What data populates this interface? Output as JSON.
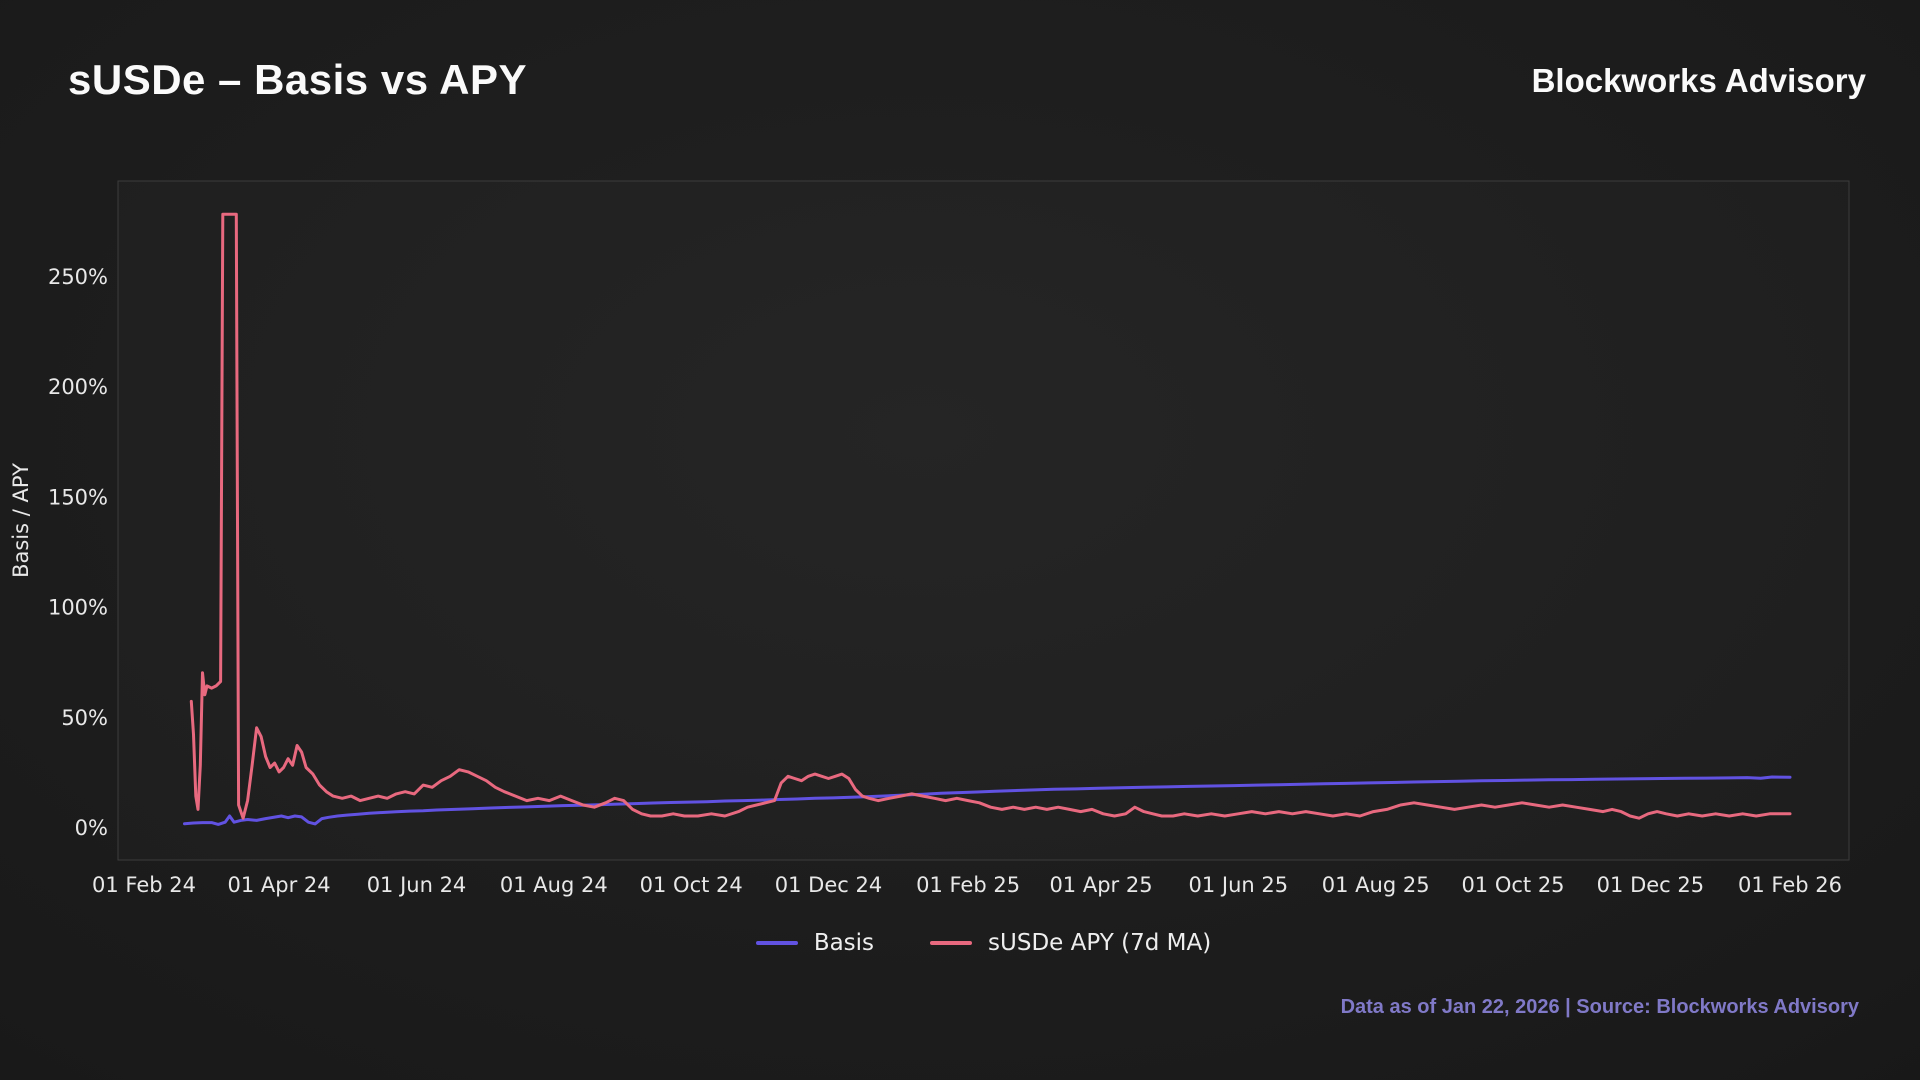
{
  "header": {
    "title": "sUSDe – Basis vs APY",
    "brand": "Blockworks Advisory"
  },
  "footer": {
    "text": "Data as of Jan 22, 2026 | Source: Blockworks Advisory",
    "color": "#8079c7"
  },
  "chart_data": {
    "type": "line",
    "title": "sUSDe – Basis vs APY",
    "xlabel": "",
    "ylabel": "Basis / APY",
    "grid": false,
    "legend_position": "bottom",
    "ylim": [
      -12,
      292
    ],
    "y_ticks": [
      0,
      50,
      100,
      150,
      200,
      250
    ],
    "y_tick_suffix": "%",
    "x_domain_days": 731,
    "x_start": "01 Feb 24",
    "x_end": "01 Feb 26",
    "x_ticks": [
      {
        "day": 0,
        "label": "01 Feb 24"
      },
      {
        "day": 60,
        "label": "01 Apr 24"
      },
      {
        "day": 121,
        "label": "01 Jun 24"
      },
      {
        "day": 182,
        "label": "01 Aug 24"
      },
      {
        "day": 243,
        "label": "01 Oct 24"
      },
      {
        "day": 304,
        "label": "01 Dec 24"
      },
      {
        "day": 366,
        "label": "01 Feb 25"
      },
      {
        "day": 425,
        "label": "01 Apr 25"
      },
      {
        "day": 486,
        "label": "01 Jun 25"
      },
      {
        "day": 547,
        "label": "01 Aug 25"
      },
      {
        "day": 608,
        "label": "01 Oct 25"
      },
      {
        "day": 669,
        "label": "01 Dec 25"
      },
      {
        "day": 731,
        "label": "01 Feb 26"
      }
    ],
    "series": [
      {
        "name": "Basis",
        "color": "#6152e2",
        "unit": "%",
        "points": [
          [
            18,
            1.5
          ],
          [
            22,
            1.8
          ],
          [
            26,
            2
          ],
          [
            30,
            2
          ],
          [
            33,
            1.2
          ],
          [
            36,
            2.2
          ],
          [
            38,
            5
          ],
          [
            40,
            2.2
          ],
          [
            43,
            3
          ],
          [
            46,
            3.4
          ],
          [
            50,
            3
          ],
          [
            54,
            3.8
          ],
          [
            58,
            4.5
          ],
          [
            61,
            5
          ],
          [
            64,
            4.2
          ],
          [
            67,
            5
          ],
          [
            70,
            4.6
          ],
          [
            73,
            2.2
          ],
          [
            76,
            1.4
          ],
          [
            79,
            3.8
          ],
          [
            82,
            4.4
          ],
          [
            86,
            5
          ],
          [
            90,
            5.4
          ],
          [
            95,
            5.8
          ],
          [
            100,
            6.2
          ],
          [
            106,
            6.6
          ],
          [
            112,
            6.9
          ],
          [
            118,
            7.2
          ],
          [
            124,
            7.4
          ],
          [
            130,
            7.7
          ],
          [
            138,
            8
          ],
          [
            146,
            8.3
          ],
          [
            154,
            8.6
          ],
          [
            162,
            8.9
          ],
          [
            170,
            9.1
          ],
          [
            178,
            9.4
          ],
          [
            186,
            9.7
          ],
          [
            194,
            9.9
          ],
          [
            202,
            10.1
          ],
          [
            210,
            10.4
          ],
          [
            218,
            10.6
          ],
          [
            226,
            10.9
          ],
          [
            234,
            11.1
          ],
          [
            242,
            11.3
          ],
          [
            250,
            11.5
          ],
          [
            258,
            11.8
          ],
          [
            266,
            12
          ],
          [
            274,
            12.2
          ],
          [
            282,
            12.5
          ],
          [
            290,
            12.7
          ],
          [
            298,
            13
          ],
          [
            306,
            13.2
          ],
          [
            314,
            13.5
          ],
          [
            322,
            13.8
          ],
          [
            330,
            14.1
          ],
          [
            338,
            14.5
          ],
          [
            346,
            14.9
          ],
          [
            354,
            15.3
          ],
          [
            362,
            15.6
          ],
          [
            370,
            15.9
          ],
          [
            378,
            16.2
          ],
          [
            386,
            16.5
          ],
          [
            394,
            16.8
          ],
          [
            404,
            17.1
          ],
          [
            414,
            17.3
          ],
          [
            424,
            17.6
          ],
          [
            434,
            17.8
          ],
          [
            444,
            18
          ],
          [
            454,
            18.2
          ],
          [
            464,
            18.4
          ],
          [
            474,
            18.6
          ],
          [
            484,
            18.8
          ],
          [
            494,
            19
          ],
          [
            504,
            19.2
          ],
          [
            514,
            19.4
          ],
          [
            524,
            19.6
          ],
          [
            534,
            19.8
          ],
          [
            544,
            20
          ],
          [
            554,
            20.2
          ],
          [
            564,
            20.4
          ],
          [
            574,
            20.6
          ],
          [
            584,
            20.8
          ],
          [
            594,
            21
          ],
          [
            604,
            21.1
          ],
          [
            614,
            21.3
          ],
          [
            624,
            21.4
          ],
          [
            634,
            21.5
          ],
          [
            644,
            21.7
          ],
          [
            654,
            21.8
          ],
          [
            664,
            21.9
          ],
          [
            674,
            22
          ],
          [
            684,
            22.1
          ],
          [
            694,
            22.2
          ],
          [
            704,
            22.3
          ],
          [
            712,
            22.4
          ],
          [
            718,
            22.1
          ],
          [
            723,
            22.7
          ],
          [
            731,
            22.6
          ]
        ]
      },
      {
        "name": "sUSDe APY (7d MA)",
        "color": "#e8697f",
        "unit": "%",
        "points": [
          [
            21,
            57
          ],
          [
            22,
            42
          ],
          [
            23,
            14
          ],
          [
            24,
            8
          ],
          [
            25,
            28
          ],
          [
            26,
            70
          ],
          [
            27,
            60
          ],
          [
            28,
            64
          ],
          [
            30,
            63
          ],
          [
            32,
            64
          ],
          [
            34,
            66
          ],
          [
            35,
            278
          ],
          [
            41,
            278
          ],
          [
            42,
            10
          ],
          [
            44,
            4
          ],
          [
            46,
            12
          ],
          [
            48,
            28
          ],
          [
            50,
            45
          ],
          [
            52,
            41
          ],
          [
            54,
            32
          ],
          [
            56,
            27
          ],
          [
            58,
            29
          ],
          [
            60,
            25
          ],
          [
            62,
            27
          ],
          [
            64,
            31
          ],
          [
            66,
            28
          ],
          [
            68,
            37
          ],
          [
            70,
            34
          ],
          [
            72,
            27
          ],
          [
            75,
            24
          ],
          [
            78,
            19
          ],
          [
            81,
            16
          ],
          [
            84,
            14
          ],
          [
            88,
            13
          ],
          [
            92,
            14
          ],
          [
            96,
            12
          ],
          [
            100,
            13
          ],
          [
            104,
            14
          ],
          [
            108,
            13
          ],
          [
            112,
            15
          ],
          [
            116,
            16
          ],
          [
            120,
            15
          ],
          [
            124,
            19
          ],
          [
            128,
            18
          ],
          [
            132,
            21
          ],
          [
            136,
            23
          ],
          [
            140,
            26
          ],
          [
            144,
            25
          ],
          [
            148,
            23
          ],
          [
            152,
            21
          ],
          [
            156,
            18
          ],
          [
            160,
            16
          ],
          [
            165,
            14
          ],
          [
            170,
            12
          ],
          [
            175,
            13
          ],
          [
            180,
            12
          ],
          [
            185,
            14
          ],
          [
            190,
            12
          ],
          [
            195,
            10
          ],
          [
            200,
            9
          ],
          [
            205,
            11
          ],
          [
            209,
            13
          ],
          [
            213,
            12
          ],
          [
            217,
            8
          ],
          [
            221,
            6
          ],
          [
            225,
            5
          ],
          [
            230,
            5
          ],
          [
            235,
            6
          ],
          [
            240,
            5
          ],
          [
            246,
            5
          ],
          [
            252,
            6
          ],
          [
            258,
            5
          ],
          [
            264,
            7
          ],
          [
            268,
            9
          ],
          [
            272,
            10
          ],
          [
            276,
            11
          ],
          [
            280,
            12
          ],
          [
            283,
            20
          ],
          [
            286,
            23
          ],
          [
            289,
            22
          ],
          [
            292,
            21
          ],
          [
            295,
            23
          ],
          [
            298,
            24
          ],
          [
            301,
            23
          ],
          [
            304,
            22
          ],
          [
            307,
            23
          ],
          [
            310,
            24
          ],
          [
            313,
            22
          ],
          [
            316,
            17
          ],
          [
            319,
            14
          ],
          [
            322,
            13
          ],
          [
            326,
            12
          ],
          [
            331,
            13
          ],
          [
            336,
            14
          ],
          [
            341,
            15
          ],
          [
            346,
            14
          ],
          [
            351,
            13
          ],
          [
            356,
            12
          ],
          [
            361,
            13
          ],
          [
            366,
            12
          ],
          [
            371,
            11
          ],
          [
            376,
            9
          ],
          [
            381,
            8
          ],
          [
            386,
            9
          ],
          [
            391,
            8
          ],
          [
            396,
            9
          ],
          [
            401,
            8
          ],
          [
            406,
            9
          ],
          [
            411,
            8
          ],
          [
            416,
            7
          ],
          [
            421,
            8
          ],
          [
            426,
            6
          ],
          [
            431,
            5
          ],
          [
            436,
            6
          ],
          [
            440,
            9
          ],
          [
            444,
            7
          ],
          [
            448,
            6
          ],
          [
            452,
            5
          ],
          [
            457,
            5
          ],
          [
            462,
            6
          ],
          [
            468,
            5
          ],
          [
            474,
            6
          ],
          [
            480,
            5
          ],
          [
            486,
            6
          ],
          [
            492,
            7
          ],
          [
            498,
            6
          ],
          [
            504,
            7
          ],
          [
            510,
            6
          ],
          [
            516,
            7
          ],
          [
            522,
            6
          ],
          [
            528,
            5
          ],
          [
            534,
            6
          ],
          [
            540,
            5
          ],
          [
            546,
            7
          ],
          [
            552,
            8
          ],
          [
            558,
            10
          ],
          [
            564,
            11
          ],
          [
            570,
            10
          ],
          [
            576,
            9
          ],
          [
            582,
            8
          ],
          [
            588,
            9
          ],
          [
            594,
            10
          ],
          [
            600,
            9
          ],
          [
            606,
            10
          ],
          [
            612,
            11
          ],
          [
            618,
            10
          ],
          [
            624,
            9
          ],
          [
            630,
            10
          ],
          [
            636,
            9
          ],
          [
            642,
            8
          ],
          [
            648,
            7
          ],
          [
            652,
            8
          ],
          [
            656,
            7
          ],
          [
            660,
            5
          ],
          [
            664,
            4
          ],
          [
            668,
            6
          ],
          [
            672,
            7
          ],
          [
            676,
            6
          ],
          [
            681,
            5
          ],
          [
            686,
            6
          ],
          [
            692,
            5
          ],
          [
            698,
            6
          ],
          [
            704,
            5
          ],
          [
            710,
            6
          ],
          [
            716,
            5
          ],
          [
            722,
            6
          ],
          [
            731,
            6
          ]
        ]
      }
    ]
  }
}
